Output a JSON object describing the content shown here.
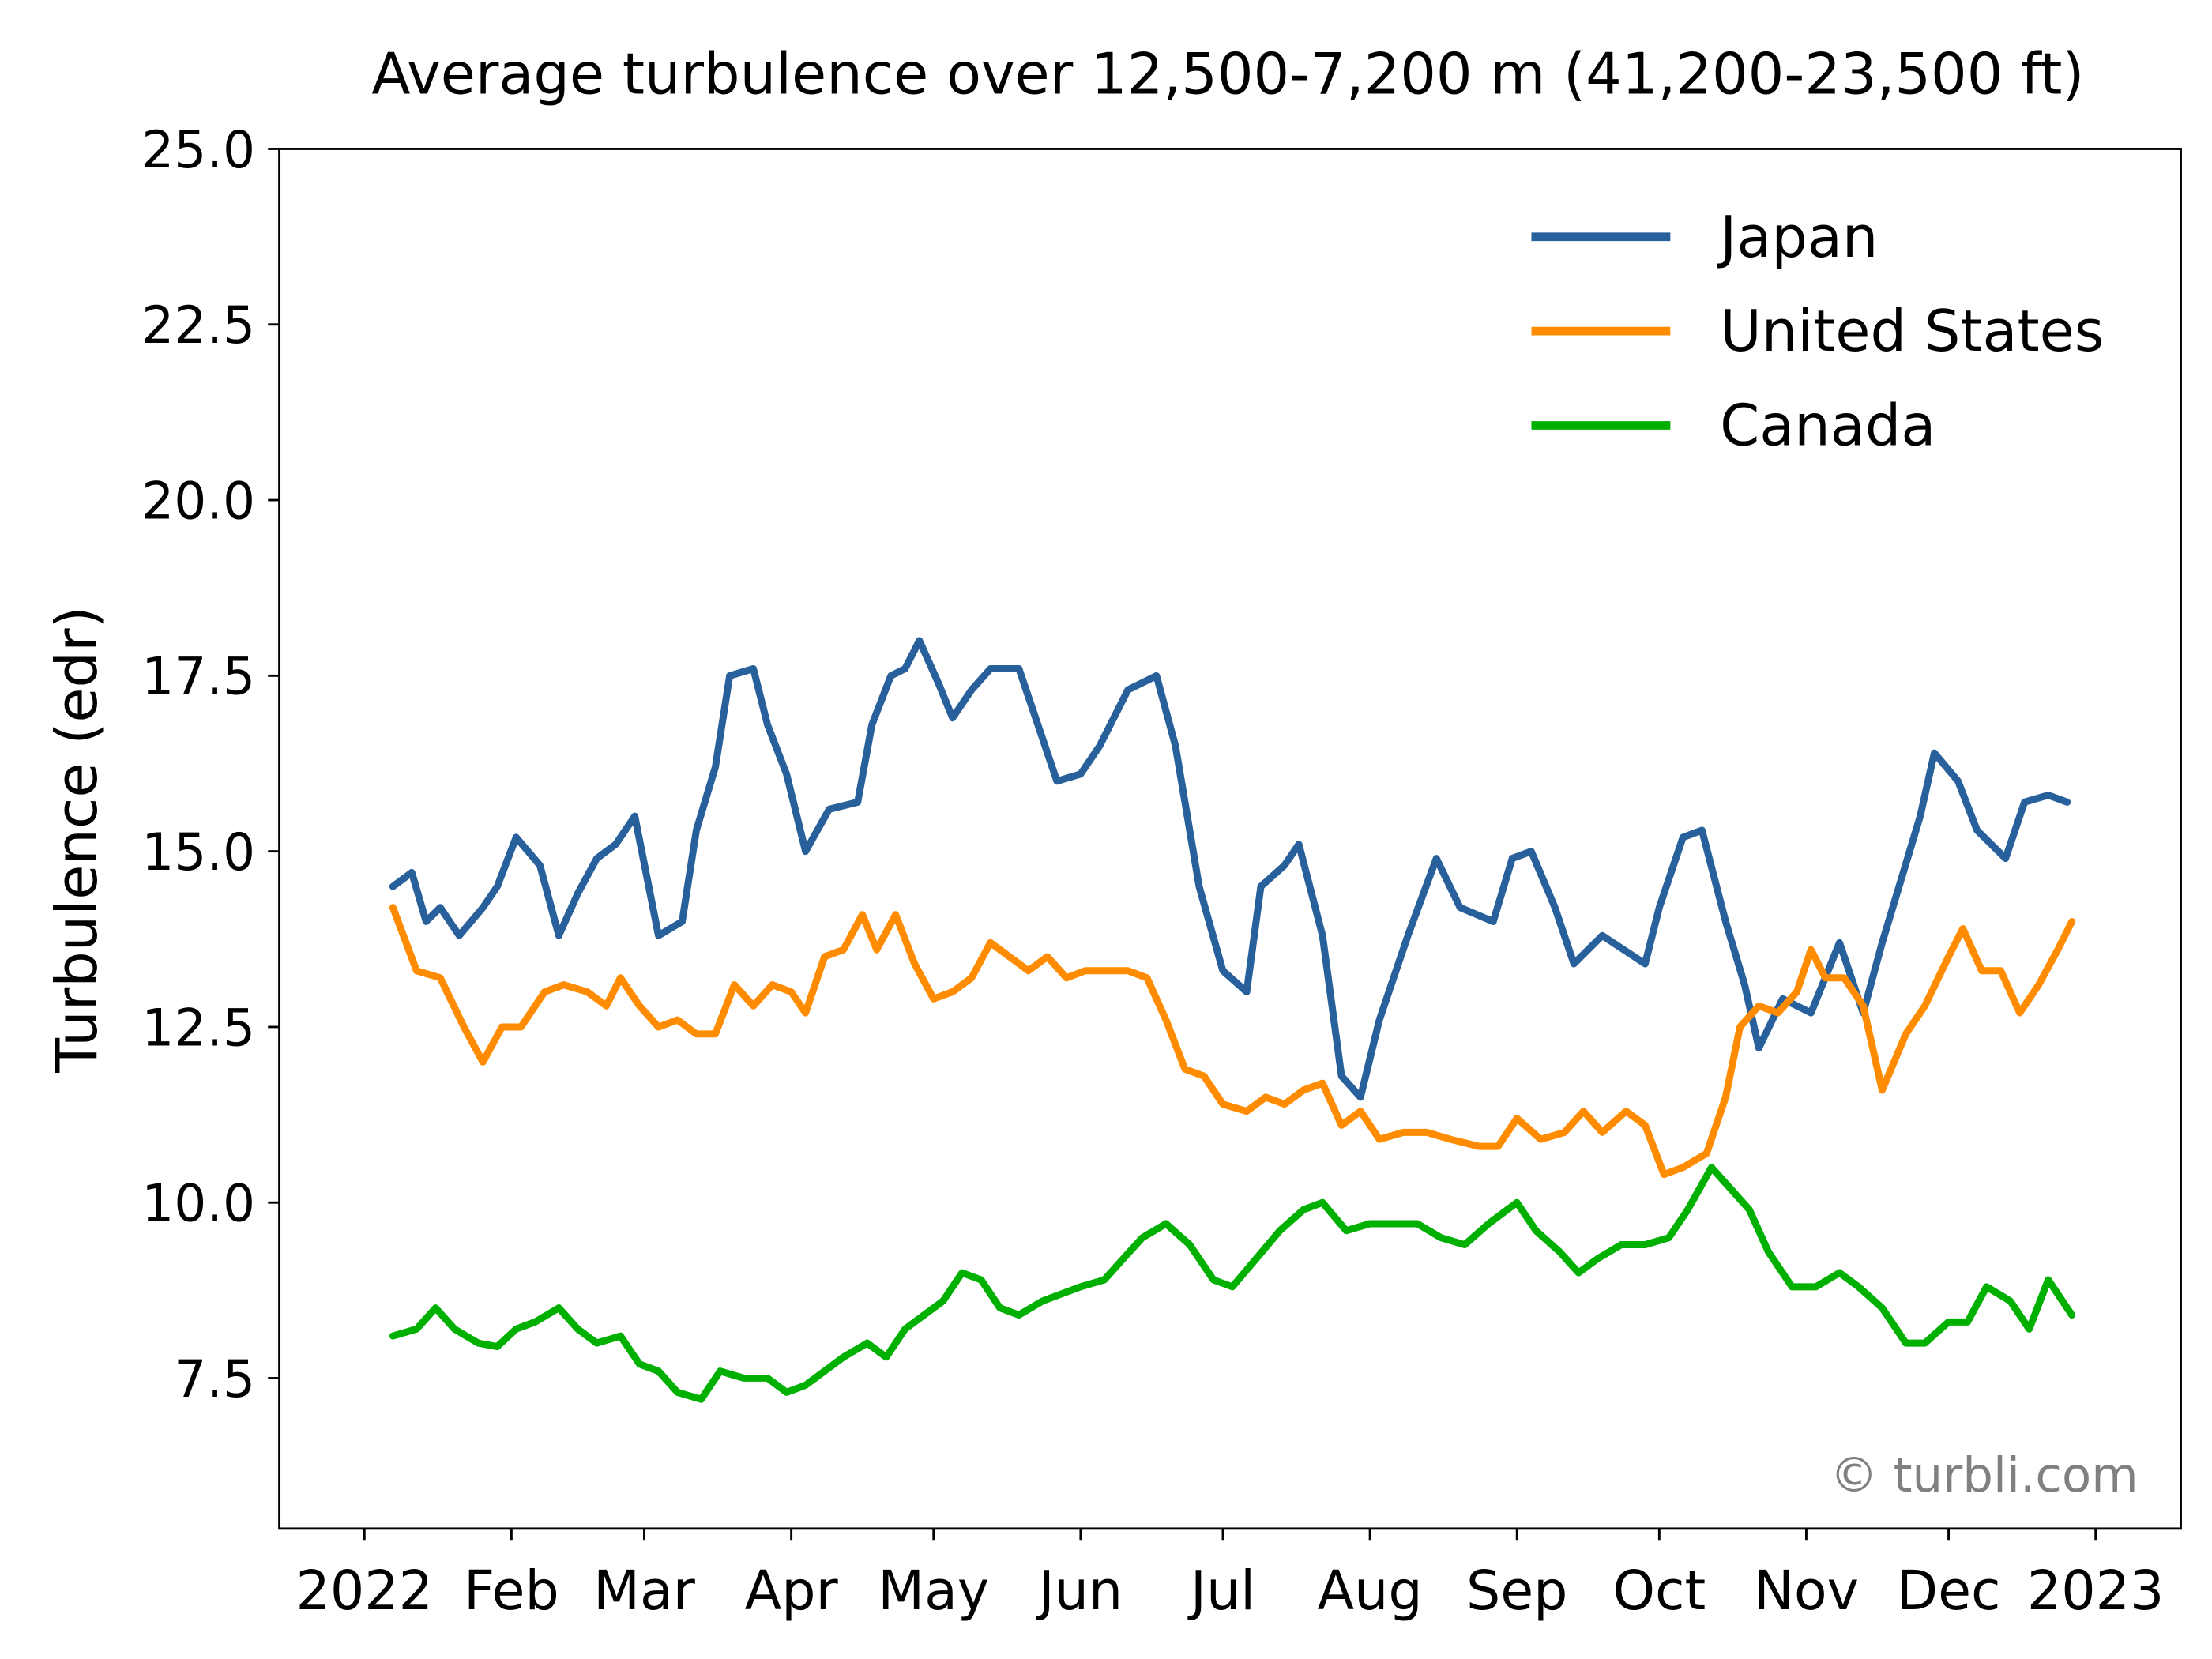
{
  "chart_data": {
    "type": "line",
    "title": "Average turbulence over 12,500-7,200 m (41,200-23,500 ft)",
    "xlabel": "",
    "ylabel": "Turbulence (edr)",
    "xlim": [
      "2021-12-14",
      "2023-01-18"
    ],
    "ylim": [
      5.35,
      25.0
    ],
    "yticks": [
      "7.5",
      "10.0",
      "12.5",
      "15.0",
      "17.5",
      "20.0",
      "22.5",
      "25.0"
    ],
    "xticks": [
      {
        "date": "2022-01-01",
        "label": "2022"
      },
      {
        "date": "2022-02-01",
        "label": "Feb"
      },
      {
        "date": "2022-03-01",
        "label": "Mar"
      },
      {
        "date": "2022-04-01",
        "label": "Apr"
      },
      {
        "date": "2022-05-01",
        "label": "May"
      },
      {
        "date": "2022-06-01",
        "label": "Jun"
      },
      {
        "date": "2022-07-01",
        "label": "Jul"
      },
      {
        "date": "2022-08-01",
        "label": "Aug"
      },
      {
        "date": "2022-09-01",
        "label": "Sep"
      },
      {
        "date": "2022-10-01",
        "label": "Oct"
      },
      {
        "date": "2022-11-01",
        "label": "Nov"
      },
      {
        "date": "2022-12-01",
        "label": "Dec"
      },
      {
        "date": "2023-01-01",
        "label": "2023"
      }
    ],
    "grid": false,
    "legend_position": "top-right",
    "watermark": "© turbli.com",
    "series": [
      {
        "name": "Japan",
        "color": "#27609b",
        "points": [
          [
            "2022-01-07",
            14.5
          ],
          [
            "2022-01-11",
            14.7
          ],
          [
            "2022-01-14",
            14.0
          ],
          [
            "2022-01-17",
            14.2
          ],
          [
            "2022-01-21",
            13.8
          ],
          [
            "2022-01-26",
            14.2
          ],
          [
            "2022-01-29",
            14.5
          ],
          [
            "2022-02-02",
            15.2
          ],
          [
            "2022-02-07",
            14.8
          ],
          [
            "2022-02-11",
            13.8
          ],
          [
            "2022-02-15",
            14.4
          ],
          [
            "2022-02-19",
            14.9
          ],
          [
            "2022-02-23",
            15.1
          ],
          [
            "2022-02-27",
            15.5
          ],
          [
            "2022-03-04",
            13.8
          ],
          [
            "2022-03-09",
            14.0
          ],
          [
            "2022-03-12",
            15.3
          ],
          [
            "2022-03-16",
            16.2
          ],
          [
            "2022-03-19",
            17.5
          ],
          [
            "2022-03-24",
            17.6
          ],
          [
            "2022-03-27",
            16.8
          ],
          [
            "2022-03-31",
            16.1
          ],
          [
            "2022-04-04",
            15.0
          ],
          [
            "2022-04-09",
            15.6
          ],
          [
            "2022-04-15",
            15.7
          ],
          [
            "2022-04-18",
            16.8
          ],
          [
            "2022-04-22",
            17.5
          ],
          [
            "2022-04-25",
            17.6
          ],
          [
            "2022-04-28",
            18.0
          ],
          [
            "2022-05-02",
            17.4
          ],
          [
            "2022-05-05",
            16.9
          ],
          [
            "2022-05-09",
            17.3
          ],
          [
            "2022-05-13",
            17.6
          ],
          [
            "2022-05-19",
            17.6
          ],
          [
            "2022-05-23",
            16.8
          ],
          [
            "2022-05-27",
            16.0
          ],
          [
            "2022-06-01",
            16.1
          ],
          [
            "2022-06-05",
            16.5
          ],
          [
            "2022-06-11",
            17.3
          ],
          [
            "2022-06-17",
            17.5
          ],
          [
            "2022-06-21",
            16.5
          ],
          [
            "2022-06-26",
            14.5
          ],
          [
            "2022-07-01",
            13.3
          ],
          [
            "2022-07-06",
            13.0
          ],
          [
            "2022-07-09",
            14.5
          ],
          [
            "2022-07-14",
            14.8
          ],
          [
            "2022-07-17",
            15.1
          ],
          [
            "2022-07-22",
            13.8
          ],
          [
            "2022-07-26",
            11.8
          ],
          [
            "2022-07-30",
            11.5
          ],
          [
            "2022-08-03",
            12.6
          ],
          [
            "2022-08-09",
            13.8
          ],
          [
            "2022-08-15",
            14.9
          ],
          [
            "2022-08-20",
            14.2
          ],
          [
            "2022-08-27",
            14.0
          ],
          [
            "2022-08-31",
            14.9
          ],
          [
            "2022-09-04",
            15.0
          ],
          [
            "2022-09-09",
            14.2
          ],
          [
            "2022-09-13",
            13.4
          ],
          [
            "2022-09-19",
            13.8
          ],
          [
            "2022-09-28",
            13.4
          ],
          [
            "2022-10-01",
            14.2
          ],
          [
            "2022-10-06",
            15.2
          ],
          [
            "2022-10-10",
            15.3
          ],
          [
            "2022-10-15",
            14.0
          ],
          [
            "2022-10-19",
            13.1
          ],
          [
            "2022-10-22",
            12.2
          ],
          [
            "2022-10-27",
            12.9
          ],
          [
            "2022-11-02",
            12.7
          ],
          [
            "2022-11-08",
            13.7
          ],
          [
            "2022-11-13",
            12.7
          ],
          [
            "2022-11-17",
            13.7
          ],
          [
            "2022-11-21",
            14.6
          ],
          [
            "2022-11-25",
            15.5
          ],
          [
            "2022-11-28",
            16.4
          ],
          [
            "2022-12-03",
            16.0
          ],
          [
            "2022-12-07",
            15.3
          ],
          [
            "2022-12-13",
            14.9
          ],
          [
            "2022-12-17",
            15.7
          ],
          [
            "2022-12-22",
            15.8
          ],
          [
            "2022-12-26",
            15.7
          ]
        ]
      },
      {
        "name": "United States",
        "color": "#ff8c00",
        "points": [
          [
            "2022-01-07",
            14.2
          ],
          [
            "2022-01-12",
            13.3
          ],
          [
            "2022-01-17",
            13.2
          ],
          [
            "2022-01-22",
            12.5
          ],
          [
            "2022-01-26",
            12.0
          ],
          [
            "2022-01-30",
            12.5
          ],
          [
            "2022-02-03",
            12.5
          ],
          [
            "2022-02-08",
            13.0
          ],
          [
            "2022-02-12",
            13.1
          ],
          [
            "2022-02-17",
            13.0
          ],
          [
            "2022-02-21",
            12.8
          ],
          [
            "2022-02-24",
            13.2
          ],
          [
            "2022-02-28",
            12.8
          ],
          [
            "2022-03-04",
            12.5
          ],
          [
            "2022-03-08",
            12.6
          ],
          [
            "2022-03-12",
            12.4
          ],
          [
            "2022-03-16",
            12.4
          ],
          [
            "2022-03-20",
            13.1
          ],
          [
            "2022-03-24",
            12.8
          ],
          [
            "2022-03-28",
            13.1
          ],
          [
            "2022-04-01",
            13.0
          ],
          [
            "2022-04-04",
            12.7
          ],
          [
            "2022-04-08",
            13.5
          ],
          [
            "2022-04-12",
            13.6
          ],
          [
            "2022-04-16",
            14.1
          ],
          [
            "2022-04-19",
            13.6
          ],
          [
            "2022-04-23",
            14.1
          ],
          [
            "2022-04-27",
            13.4
          ],
          [
            "2022-05-01",
            12.9
          ],
          [
            "2022-05-05",
            13.0
          ],
          [
            "2022-05-09",
            13.2
          ],
          [
            "2022-05-13",
            13.7
          ],
          [
            "2022-05-17",
            13.5
          ],
          [
            "2022-05-21",
            13.3
          ],
          [
            "2022-05-25",
            13.5
          ],
          [
            "2022-05-29",
            13.2
          ],
          [
            "2022-06-02",
            13.3
          ],
          [
            "2022-06-06",
            13.3
          ],
          [
            "2022-06-11",
            13.3
          ],
          [
            "2022-06-15",
            13.2
          ],
          [
            "2022-06-19",
            12.6
          ],
          [
            "2022-06-23",
            11.9
          ],
          [
            "2022-06-27",
            11.8
          ],
          [
            "2022-07-01",
            11.4
          ],
          [
            "2022-07-06",
            11.3
          ],
          [
            "2022-07-10",
            11.5
          ],
          [
            "2022-07-14",
            11.4
          ],
          [
            "2022-07-18",
            11.6
          ],
          [
            "2022-07-22",
            11.7
          ],
          [
            "2022-07-26",
            11.1
          ],
          [
            "2022-07-30",
            11.3
          ],
          [
            "2022-08-03",
            10.9
          ],
          [
            "2022-08-08",
            11.0
          ],
          [
            "2022-08-13",
            11.0
          ],
          [
            "2022-08-18",
            10.9
          ],
          [
            "2022-08-24",
            10.8
          ],
          [
            "2022-08-28",
            10.8
          ],
          [
            "2022-09-01",
            11.2
          ],
          [
            "2022-09-06",
            10.9
          ],
          [
            "2022-09-11",
            11.0
          ],
          [
            "2022-09-15",
            11.3
          ],
          [
            "2022-09-19",
            11.0
          ],
          [
            "2022-09-24",
            11.3
          ],
          [
            "2022-09-28",
            11.1
          ],
          [
            "2022-10-02",
            10.4
          ],
          [
            "2022-10-06",
            10.5
          ],
          [
            "2022-10-11",
            10.7
          ],
          [
            "2022-10-15",
            11.5
          ],
          [
            "2022-10-18",
            12.5
          ],
          [
            "2022-10-22",
            12.8
          ],
          [
            "2022-10-26",
            12.7
          ],
          [
            "2022-10-30",
            13.0
          ],
          [
            "2022-11-02",
            13.6
          ],
          [
            "2022-11-05",
            13.2
          ],
          [
            "2022-11-09",
            13.2
          ],
          [
            "2022-11-13",
            12.8
          ],
          [
            "2022-11-17",
            11.6
          ],
          [
            "2022-11-22",
            12.4
          ],
          [
            "2022-11-26",
            12.8
          ],
          [
            "2022-12-01",
            13.5
          ],
          [
            "2022-12-04",
            13.9
          ],
          [
            "2022-12-08",
            13.3
          ],
          [
            "2022-12-12",
            13.3
          ],
          [
            "2022-12-16",
            12.7
          ],
          [
            "2022-12-20",
            13.1
          ],
          [
            "2022-12-24",
            13.6
          ],
          [
            "2022-12-27",
            14.0
          ]
        ]
      },
      {
        "name": "Canada",
        "color": "#00b000",
        "points": [
          [
            "2022-01-07",
            8.1
          ],
          [
            "2022-01-12",
            8.2
          ],
          [
            "2022-01-16",
            8.5
          ],
          [
            "2022-01-20",
            8.2
          ],
          [
            "2022-01-25",
            8.0
          ],
          [
            "2022-01-29",
            7.95
          ],
          [
            "2022-02-02",
            8.2
          ],
          [
            "2022-02-06",
            8.3
          ],
          [
            "2022-02-11",
            8.5
          ],
          [
            "2022-02-15",
            8.2
          ],
          [
            "2022-02-19",
            8.0
          ],
          [
            "2022-02-24",
            8.1
          ],
          [
            "2022-02-28",
            7.7
          ],
          [
            "2022-03-04",
            7.6
          ],
          [
            "2022-03-08",
            7.3
          ],
          [
            "2022-03-13",
            7.2
          ],
          [
            "2022-03-17",
            7.6
          ],
          [
            "2022-03-22",
            7.5
          ],
          [
            "2022-03-27",
            7.5
          ],
          [
            "2022-03-31",
            7.3
          ],
          [
            "2022-04-04",
            7.4
          ],
          [
            "2022-04-08",
            7.6
          ],
          [
            "2022-04-12",
            7.8
          ],
          [
            "2022-04-17",
            8.0
          ],
          [
            "2022-04-21",
            7.8
          ],
          [
            "2022-04-25",
            8.2
          ],
          [
            "2022-04-29",
            8.4
          ],
          [
            "2022-05-03",
            8.6
          ],
          [
            "2022-05-07",
            9.0
          ],
          [
            "2022-05-11",
            8.9
          ],
          [
            "2022-05-15",
            8.5
          ],
          [
            "2022-05-19",
            8.4
          ],
          [
            "2022-05-24",
            8.6
          ],
          [
            "2022-05-28",
            8.7
          ],
          [
            "2022-06-01",
            8.8
          ],
          [
            "2022-06-06",
            8.9
          ],
          [
            "2022-06-10",
            9.2
          ],
          [
            "2022-06-14",
            9.5
          ],
          [
            "2022-06-19",
            9.7
          ],
          [
            "2022-06-24",
            9.4
          ],
          [
            "2022-06-29",
            8.9
          ],
          [
            "2022-07-03",
            8.8
          ],
          [
            "2022-07-08",
            9.2
          ],
          [
            "2022-07-13",
            9.6
          ],
          [
            "2022-07-18",
            9.9
          ],
          [
            "2022-07-22",
            10.0
          ],
          [
            "2022-07-27",
            9.6
          ],
          [
            "2022-08-01",
            9.7
          ],
          [
            "2022-08-06",
            9.7
          ],
          [
            "2022-08-11",
            9.7
          ],
          [
            "2022-08-16",
            9.5
          ],
          [
            "2022-08-21",
            9.4
          ],
          [
            "2022-08-26",
            9.7
          ],
          [
            "2022-09-01",
            10.0
          ],
          [
            "2022-09-05",
            9.6
          ],
          [
            "2022-09-10",
            9.3
          ],
          [
            "2022-09-14",
            9.0
          ],
          [
            "2022-09-18",
            9.2
          ],
          [
            "2022-09-23",
            9.4
          ],
          [
            "2022-09-28",
            9.4
          ],
          [
            "2022-10-03",
            9.5
          ],
          [
            "2022-10-07",
            9.9
          ],
          [
            "2022-10-12",
            10.5
          ],
          [
            "2022-10-16",
            10.2
          ],
          [
            "2022-10-20",
            9.9
          ],
          [
            "2022-10-24",
            9.3
          ],
          [
            "2022-10-29",
            8.8
          ],
          [
            "2022-11-03",
            8.8
          ],
          [
            "2022-11-08",
            9.0
          ],
          [
            "2022-11-12",
            8.8
          ],
          [
            "2022-11-17",
            8.5
          ],
          [
            "2022-11-22",
            8.0
          ],
          [
            "2022-11-26",
            8.0
          ],
          [
            "2022-12-01",
            8.3
          ],
          [
            "2022-12-05",
            8.3
          ],
          [
            "2022-12-09",
            8.8
          ],
          [
            "2022-12-14",
            8.6
          ],
          [
            "2022-12-18",
            8.2
          ],
          [
            "2022-12-22",
            8.9
          ],
          [
            "2022-12-27",
            8.4
          ]
        ]
      }
    ]
  }
}
